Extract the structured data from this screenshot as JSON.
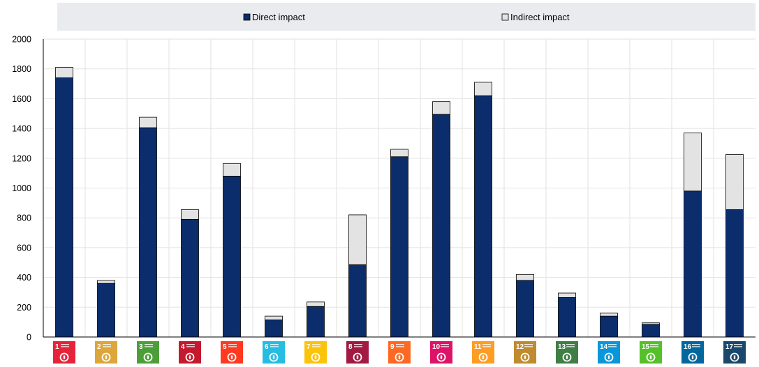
{
  "chart_data": {
    "type": "bar",
    "stacked": true,
    "categories": [
      "1",
      "2",
      "3",
      "4",
      "5",
      "6",
      "7",
      "8",
      "9",
      "10",
      "11",
      "12",
      "13",
      "14",
      "15",
      "16",
      "17"
    ],
    "series": [
      {
        "name": "Direct impact",
        "color": "#0b2d6b",
        "values": [
          1740,
          360,
          1405,
          790,
          1080,
          115,
          205,
          485,
          1210,
          1495,
          1620,
          380,
          265,
          140,
          85,
          980,
          855
        ]
      },
      {
        "name": "Indirect impact",
        "color": "#e3e3e3",
        "values": [
          70,
          20,
          70,
          65,
          85,
          25,
          30,
          335,
          50,
          85,
          90,
          40,
          30,
          20,
          10,
          390,
          370
        ]
      }
    ],
    "ylim": [
      0,
      2000
    ],
    "yticks": [
      0,
      200,
      400,
      600,
      800,
      1000,
      1200,
      1400,
      1600,
      1800,
      2000
    ],
    "legend_position": "top",
    "grid": true,
    "sdg_icon_colors": [
      "#e5243b",
      "#dda63a",
      "#4c9f38",
      "#c5192d",
      "#ff3a21",
      "#26bde2",
      "#fcc30b",
      "#a21942",
      "#fd6925",
      "#dd1367",
      "#fd9d24",
      "#bf8b2e",
      "#3f7e44",
      "#0a97d9",
      "#56c02b",
      "#00689d",
      "#19486a"
    ]
  }
}
